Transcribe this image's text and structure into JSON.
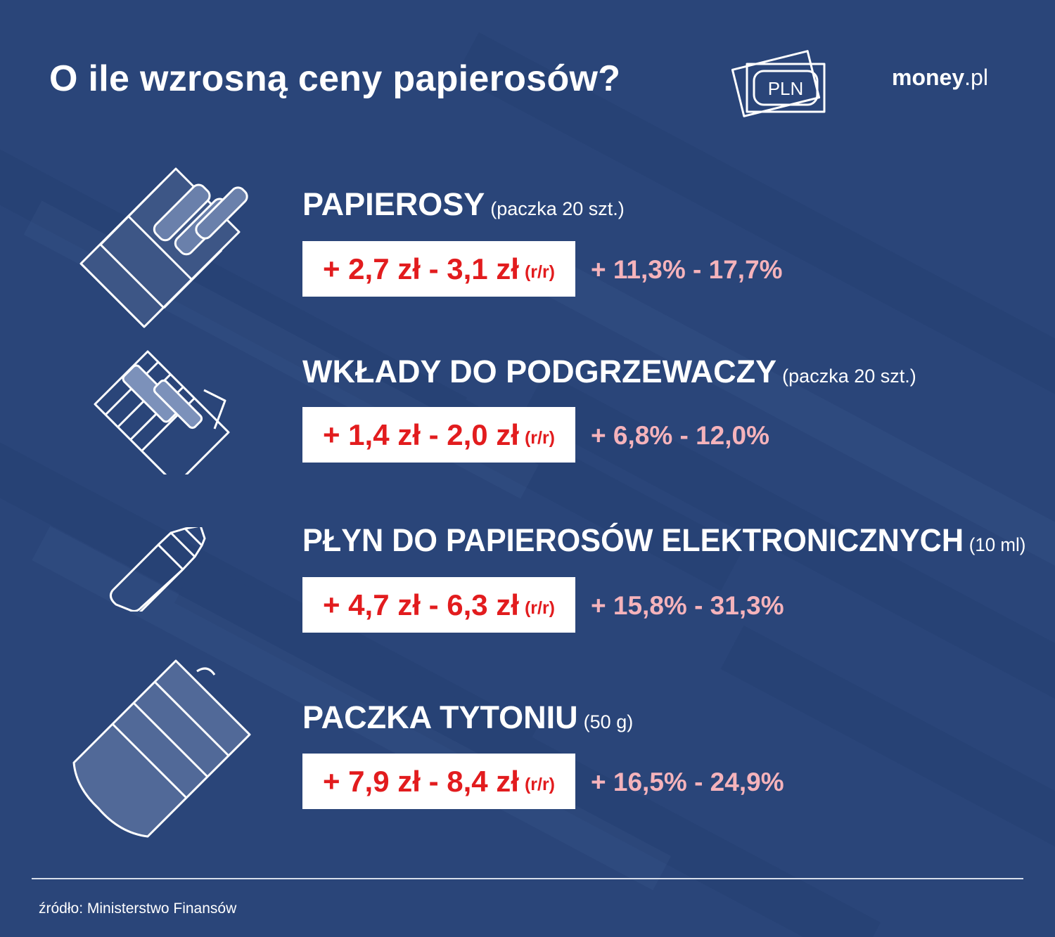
{
  "header": {
    "title": "O ile wzrosną ceny papierosów?",
    "pln_label": "PLN",
    "logo_main": "money",
    "logo_suffix": ".pl"
  },
  "items": [
    {
      "icon": "cigarette-pack-icon",
      "name": "PAPIEROSY",
      "note": "(paczka 20 szt.)",
      "amount": "+ 2,7 zł - 3,1 zł",
      "period": "(r/r)",
      "percent": "+ 11,3% - 17,7%"
    },
    {
      "icon": "heated-tobacco-pack-icon",
      "name": "WKŁADY DO PODGRZEWACZY",
      "note": "(paczka 20 szt.)",
      "amount": "+ 1,4 zł - 2,0 zł",
      "period": "(r/r)",
      "percent": "+ 6,8% - 12,0%"
    },
    {
      "icon": "e-liquid-bottle-icon",
      "name": "PŁYN DO PAPIEROSÓW ELEKTRONICZNYCH",
      "note": "(10 ml)",
      "amount": "+ 4,7 zł - 6,3 zł",
      "period": "(r/r)",
      "percent": "+ 15,8% - 31,3%"
    },
    {
      "icon": "tobacco-pouch-icon",
      "name": "PACZKA TYTONIU",
      "note": "(50 g)",
      "amount": "+ 7,9 zł - 8,4 zł",
      "period": "(r/r)",
      "percent": "+ 16,5% - 24,9%"
    }
  ],
  "footer": {
    "source": "źródło: Ministerstwo Finansów"
  },
  "colors": {
    "background": "#2a4579",
    "amount_red": "#e21c1e",
    "percent_pink": "#f5b3bb",
    "box_white": "#ffffff"
  }
}
